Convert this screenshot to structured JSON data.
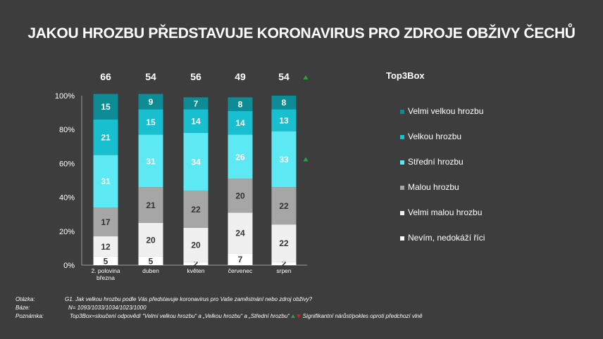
{
  "title": "JAKOU HROZBU PŘEDSTAVUJE KORONAVIRUS PRO ZDROJE OBŽIVY ČECHŮ",
  "top3_label": "Top3Box",
  "colors": {
    "background": "#3d3d3d",
    "arrow_up": "#2ea043",
    "arrow_down": "#e02020"
  },
  "chart_data": {
    "type": "bar",
    "stacked": true,
    "categories": [
      "2. polovina března",
      "duben",
      "květen",
      "červenec",
      "srpen"
    ],
    "category_lines": [
      [
        "2. polovina",
        "března"
      ],
      [
        "duben"
      ],
      [
        "květen"
      ],
      [
        "červenec"
      ],
      [
        "srpen"
      ]
    ],
    "top3box": [
      66,
      54,
      56,
      49,
      54
    ],
    "top3box_significant_up": [
      false,
      false,
      false,
      false,
      true
    ],
    "ylim": [
      0,
      100
    ],
    "yticks": [
      "0%",
      "20%",
      "40%",
      "60%",
      "80%",
      "100%"
    ],
    "series": [
      {
        "name": "Nevím, nedokáží říci",
        "color": "#ffffff",
        "label_color": "#333333",
        "values": [
          5,
          5,
          2,
          7,
          2
        ]
      },
      {
        "name": "Velmi malou hrozbu",
        "color": "#f0f0f0",
        "label_color": "#333333",
        "values": [
          12,
          20,
          20,
          24,
          22
        ]
      },
      {
        "name": "Malou hrozbu",
        "color": "#a6a6a6",
        "label_color": "#333333",
        "values": [
          17,
          21,
          22,
          20,
          22
        ]
      },
      {
        "name": "Střední hrozbu",
        "color": "#5ce9f3",
        "label_color": "#ffffff",
        "values": [
          31,
          31,
          34,
          26,
          33
        ],
        "significant_up": [
          false,
          false,
          false,
          false,
          true
        ]
      },
      {
        "name": "Velkou hrozbu",
        "color": "#19bfcf",
        "label_color": "#ffffff",
        "values": [
          21,
          15,
          14,
          14,
          13
        ]
      },
      {
        "name": "Velmi velkou hrozbu",
        "color": "#0d8c96",
        "label_color": "#ffffff",
        "values": [
          15,
          9,
          7,
          8,
          8
        ]
      }
    ],
    "legend_order": [
      "Velmi velkou hrozbu",
      "Velkou hrozbu",
      "Střední hrozbu",
      "Malou hrozbu",
      "Velmi malou hrozbu",
      "Nevím, nedokáží říci"
    ]
  },
  "notes": {
    "question_label": "Otázka:",
    "question_text": "G1. Jak velkou hrozbu podle Vás představuje koronavirus pro Vaše zaměstnání nebo zdroj obživy?",
    "base_label": "Báze:",
    "base_text": "N= 1093/1033/1034/1023/1000",
    "remark_label": "Poznámka:",
    "remark_text": "Top3Box=sloučení odpovědí “Velmi velkou hrozbu“ a „Velkou hrozbu“ a „Střední hrozbu“",
    "remark_significance": "Signifikantní nárůst/pokles oproti předchozí vlně"
  }
}
